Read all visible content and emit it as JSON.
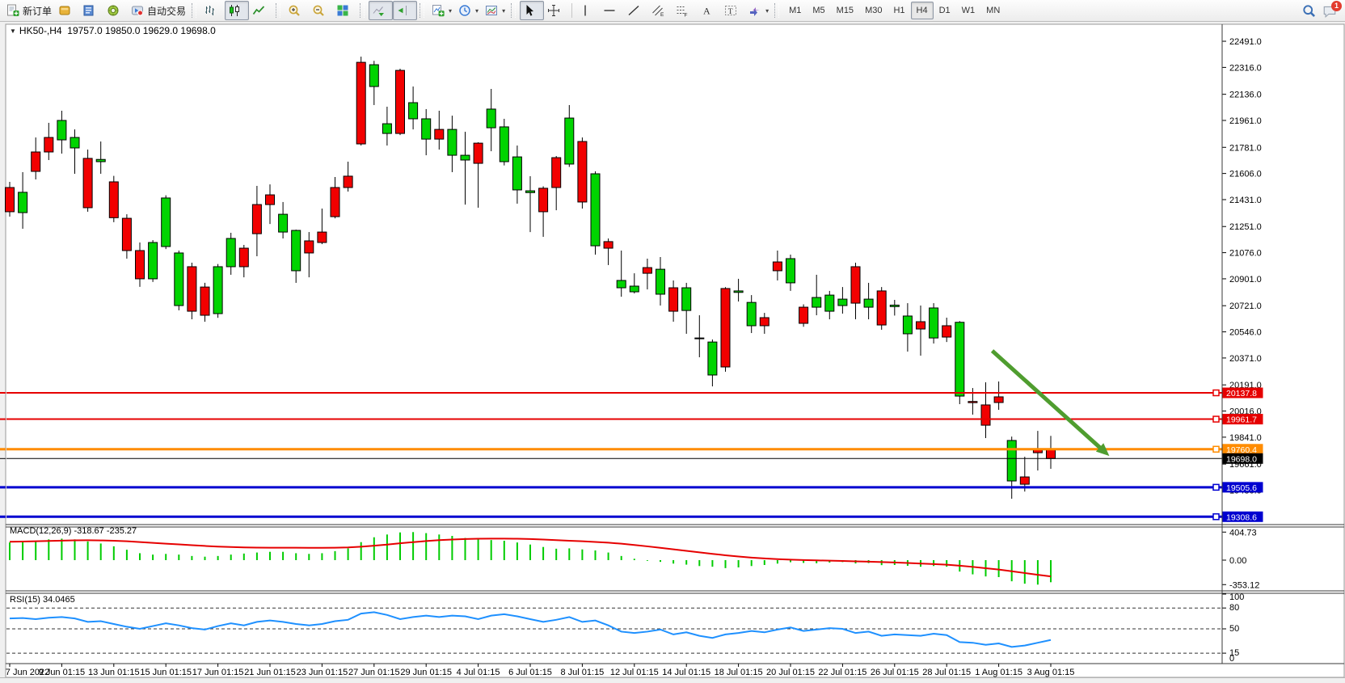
{
  "toolbar": {
    "notification_count": "1",
    "active_timeframe": "H4",
    "timeframes": [
      "M1",
      "M5",
      "M15",
      "M30",
      "H1",
      "H4",
      "D1",
      "W1",
      "MN"
    ],
    "groups": [
      {
        "name": "trade",
        "items": [
          {
            "name": "new-order-button",
            "icon": "new-order-icon",
            "label": "新订单"
          },
          {
            "name": "market-watch-button",
            "icon": "market-watch-icon"
          },
          {
            "name": "data-window-button",
            "icon": "data-window-icon"
          },
          {
            "name": "navigator-button",
            "icon": "navigator-icon"
          },
          {
            "name": "autotrading-button",
            "icon": "autotrading-icon",
            "label": "自动交易"
          }
        ]
      },
      {
        "name": "chart-type",
        "items": [
          {
            "name": "bar-chart-button",
            "icon": "chart-bar-icon"
          },
          {
            "name": "candlestick-chart-button",
            "icon": "chart-candle-icon",
            "active": true
          },
          {
            "name": "line-chart-button",
            "icon": "chart-line-icon"
          }
        ]
      },
      {
        "name": "zoom",
        "items": [
          {
            "name": "zoom-in-button",
            "icon": "zoom-in-icon"
          },
          {
            "name": "zoom-out-button",
            "icon": "zoom-out-icon"
          },
          {
            "name": "tile-windows-button",
            "icon": "tile-windows-icon"
          }
        ]
      },
      {
        "name": "scroll",
        "items": [
          {
            "name": "auto-scroll-button",
            "icon": "auto-scroll-icon",
            "active": true
          },
          {
            "name": "chart-shift-button",
            "icon": "chart-shift-icon",
            "active": true
          }
        ]
      },
      {
        "name": "insert",
        "items": [
          {
            "name": "add-indicator-button",
            "icon": "add-indicator-icon",
            "dropdown": true
          },
          {
            "name": "periods-button",
            "icon": "periods-icon",
            "dropdown": true
          },
          {
            "name": "templates-button",
            "icon": "template-icon",
            "dropdown": true
          }
        ]
      },
      {
        "name": "tools",
        "items": [
          {
            "name": "cursor-button",
            "icon": "cursor-icon",
            "active": true
          },
          {
            "name": "crosshair-button",
            "icon": "crosshair-icon"
          },
          {
            "name": "vertical-line-button",
            "icon": "vline-icon"
          },
          {
            "name": "horizontal-line-button",
            "icon": "hline-icon"
          },
          {
            "name": "trendline-button",
            "icon": "trendline-icon"
          },
          {
            "name": "channel-button",
            "icon": "channel-icon"
          },
          {
            "name": "fibonacci-button",
            "icon": "fibonacci-icon"
          },
          {
            "name": "text-button",
            "icon": "text-icon"
          },
          {
            "name": "label-button",
            "icon": "label-icon"
          },
          {
            "name": "shapes-button",
            "icon": "shapes-icon",
            "dropdown": true
          }
        ]
      }
    ]
  },
  "chart": {
    "title_symbol": "HK50-,H4",
    "title_ohlc": "19757.0 19850.0 19629.0 19698.0"
  },
  "chart_data": {
    "type": "candlestick",
    "symbol": "HK50-",
    "timeframe": "H4",
    "current_bar": {
      "open": 19757.0,
      "high": 19850.0,
      "low": 19629.0,
      "close": 19698.0
    },
    "colors": {
      "bull": "#00d400",
      "bear": "#f20000",
      "wick": "#000000",
      "rsi_line": "#1e90ff",
      "macd_hist": "#00cc00",
      "macd_signal": "#e60000",
      "arrow": "#4f9d2f"
    },
    "price_axis_ticks": [
      "22491.0",
      "22316.0",
      "22136.0",
      "21961.0",
      "21781.0",
      "21606.0",
      "21431.0",
      "21251.0",
      "21076.0",
      "20901.0",
      "20721.0",
      "20546.0",
      "20371.0",
      "20191.0",
      "20016.0",
      "19841.0",
      "19661.0",
      "19486.0",
      "19311.0"
    ],
    "time_axis_labels": [
      "7 Jun 2022",
      "9 Jun 01:15",
      "13 Jun 01:15",
      "15 Jun 01:15",
      "17 Jun 01:15",
      "21 Jun 01:15",
      "23 Jun 01:15",
      "27 Jun 01:15",
      "29 Jun 01:15",
      "4 Jul 01:15",
      "6 Jul 01:15",
      "8 Jul 01:15",
      "12 Jul 01:15",
      "14 Jul 01:15",
      "18 Jul 01:15",
      "20 Jul 01:15",
      "22 Jul 01:15",
      "26 Jul 01:15",
      "28 Jul 01:15",
      "1 Aug 01:15",
      "3 Aug 01:15"
    ],
    "hlines": [
      {
        "price": 20137.8,
        "label": "20137.8",
        "color": "#e60000",
        "width": 2
      },
      {
        "price": 19961.7,
        "label": "19961.7",
        "color": "#e60000",
        "width": 2
      },
      {
        "price": 19760.4,
        "label": "19760.4",
        "color": "#ff8c00",
        "width": 3
      },
      {
        "price": 19698.0,
        "label": "19698.0",
        "color": "#000000",
        "width": 1
      },
      {
        "price": 19505.6,
        "label": "19505.6",
        "color": "#0000d0",
        "width": 3
      },
      {
        "price": 19308.6,
        "label": "19308.6",
        "color": "#0000d0",
        "width": 3
      }
    ],
    "arrow": {
      "from": {
        "index": 75.5,
        "price": 20419
      },
      "to": {
        "index": 84.5,
        "price": 19715
      }
    },
    "candles": [
      [
        21512,
        21550,
        21317,
        21350
      ],
      [
        21344,
        21615,
        21236,
        21480
      ],
      [
        21750,
        21847,
        21566,
        21620
      ],
      [
        21847,
        21945,
        21696,
        21750
      ],
      [
        21831,
        22026,
        21739,
        21961
      ],
      [
        21777,
        21901,
        21604,
        21847
      ],
      [
        21707,
        21766,
        21350,
        21377
      ],
      [
        21685,
        21820,
        21604,
        21700
      ],
      [
        21550,
        21590,
        21280,
        21310
      ],
      [
        21306,
        21333,
        21036,
        21090
      ],
      [
        21090,
        21144,
        20847,
        20901
      ],
      [
        20901,
        21160,
        20880,
        21144
      ],
      [
        21117,
        21460,
        21100,
        21442
      ],
      [
        20722,
        21090,
        20690,
        21074
      ],
      [
        20982,
        21009,
        20630,
        20684
      ],
      [
        20846,
        20874,
        20614,
        20657
      ],
      [
        20668,
        21000,
        20640,
        20982
      ],
      [
        20982,
        21209,
        20928,
        21171
      ],
      [
        21106,
        21128,
        20911,
        20982
      ],
      [
        21398,
        21523,
        21052,
        21203
      ],
      [
        21463,
        21533,
        21268,
        21398
      ],
      [
        21214,
        21415,
        21171,
        21333
      ],
      [
        20955,
        21230,
        20874,
        21225
      ],
      [
        21155,
        21214,
        20911,
        21074
      ],
      [
        21214,
        21371,
        21133,
        21144
      ],
      [
        21512,
        21582,
        21306,
        21317
      ],
      [
        21588,
        21685,
        21485,
        21512
      ],
      [
        22350,
        22388,
        21793,
        21804
      ],
      [
        22188,
        22360,
        22064,
        22334
      ],
      [
        21874,
        22053,
        21793,
        21939
      ],
      [
        22296,
        22307,
        21863,
        21874
      ],
      [
        21972,
        22188,
        21901,
        22080
      ],
      [
        21836,
        22037,
        21728,
        21972
      ],
      [
        21901,
        22026,
        21766,
        21836
      ],
      [
        21728,
        21993,
        21615,
        21901
      ],
      [
        21696,
        21885,
        21398,
        21728
      ],
      [
        21809,
        21815,
        21377,
        21674
      ],
      [
        21912,
        22172,
        21755,
        22037
      ],
      [
        21685,
        21972,
        21660,
        21918
      ],
      [
        21496,
        21793,
        21404,
        21717
      ],
      [
        21478,
        21588,
        21214,
        21490
      ],
      [
        21507,
        21520,
        21182,
        21350
      ],
      [
        21712,
        21723,
        21360,
        21512
      ],
      [
        21669,
        22064,
        21650,
        21977
      ],
      [
        21820,
        21847,
        21371,
        21415
      ],
      [
        21122,
        21620,
        21063,
        21604
      ],
      [
        21150,
        21171,
        20993,
        21106
      ],
      [
        20841,
        21090,
        20781,
        20890
      ],
      [
        20814,
        20938,
        20803,
        20852
      ],
      [
        20976,
        21036,
        20830,
        20938
      ],
      [
        20798,
        21047,
        20722,
        20965
      ],
      [
        20841,
        20890,
        20614,
        20684
      ],
      [
        20689,
        20874,
        20533,
        20841
      ],
      [
        20500,
        20657,
        20376,
        20505
      ],
      [
        20257,
        20495,
        20181,
        20478
      ],
      [
        20836,
        20845,
        20279,
        20311
      ],
      [
        20810,
        20901,
        20749,
        20820
      ],
      [
        20587,
        20792,
        20538,
        20743
      ],
      [
        20641,
        20673,
        20533,
        20587
      ],
      [
        21014,
        21090,
        20890,
        20955
      ],
      [
        20874,
        21063,
        20820,
        21036
      ],
      [
        20711,
        20730,
        20580,
        20603
      ],
      [
        20711,
        20928,
        20657,
        20776
      ],
      [
        20684,
        20820,
        20630,
        20792
      ],
      [
        20722,
        20846,
        20668,
        20765
      ],
      [
        20982,
        21009,
        20630,
        20738
      ],
      [
        20711,
        20874,
        20630,
        20765
      ],
      [
        20820,
        20846,
        20560,
        20592
      ],
      [
        20715,
        20760,
        20655,
        20725
      ],
      [
        20533,
        20738,
        20414,
        20652
      ],
      [
        20614,
        20722,
        20387,
        20565
      ],
      [
        20505,
        20738,
        20468,
        20706
      ],
      [
        20587,
        20641,
        20478,
        20511
      ],
      [
        20116,
        20618,
        20062,
        20610
      ],
      [
        20080,
        20170,
        19992,
        20072
      ],
      [
        20057,
        20208,
        19835,
        19921
      ],
      [
        20111,
        20214,
        20024,
        20073
      ],
      [
        19548,
        19845,
        19429,
        19819
      ],
      [
        19575,
        19710,
        19477,
        19526
      ],
      [
        19759,
        19883,
        19618,
        19737
      ],
      [
        19757,
        19850,
        19629,
        19698
      ]
    ],
    "macd": {
      "label": "MACD(12,26,9)",
      "values_text": "-318.67 -235.27",
      "axis": [
        "404.73",
        "0.00",
        "-353.12"
      ],
      "hist": [
        255,
        265,
        280,
        300,
        310,
        300,
        270,
        240,
        200,
        150,
        100,
        80,
        90,
        80,
        60,
        50,
        60,
        80,
        95,
        110,
        120,
        120,
        100,
        90,
        100,
        130,
        170,
        260,
        330,
        370,
        400,
        405,
        390,
        370,
        350,
        320,
        300,
        290,
        280,
        255,
        225,
        190,
        165,
        170,
        155,
        140,
        110,
        60,
        20,
        -10,
        -25,
        -50,
        -65,
        -85,
        -95,
        -115,
        -105,
        -85,
        -70,
        -50,
        -30,
        -40,
        -45,
        -35,
        -28,
        -48,
        -42,
        -72,
        -70,
        -82,
        -95,
        -85,
        -95,
        -165,
        -205,
        -235,
        -245,
        -305,
        -340,
        -353.12,
        -318.67
      ],
      "signal": [
        265,
        268,
        272,
        277,
        282,
        286,
        287,
        285,
        280,
        272,
        261,
        249,
        238,
        227,
        216,
        205,
        196,
        189,
        184,
        181,
        180,
        180,
        179,
        178,
        178,
        180,
        184,
        194,
        208,
        225,
        243,
        260,
        275,
        288,
        298,
        305,
        309,
        311,
        311,
        309,
        304,
        297,
        288,
        280,
        272,
        263,
        252,
        237,
        219,
        199,
        178,
        156,
        134,
        112,
        91,
        70,
        52,
        37,
        25,
        15,
        8,
        2,
        -3,
        -8,
        -12,
        -17,
        -22,
        -28,
        -34,
        -41,
        -49,
        -57,
        -66,
        -80,
        -97,
        -116,
        -136,
        -160,
        -186,
        -211,
        -235.27
      ]
    },
    "rsi": {
      "label": "RSI(15)",
      "value_text": "34.0465",
      "levels": [
        80,
        50,
        15
      ],
      "axis": [
        "100",
        "80",
        "50",
        "15",
        "0"
      ],
      "values": [
        65,
        65.5,
        64,
        66,
        67,
        65,
        60,
        61,
        57,
        53,
        50,
        54,
        58,
        55,
        51,
        49,
        54,
        58,
        55,
        60,
        62,
        60,
        57,
        55,
        57,
        61,
        63,
        72,
        74,
        70,
        64,
        67,
        69,
        67,
        69,
        68,
        64,
        69,
        71,
        68,
        64,
        60,
        63,
        67,
        60,
        62,
        55,
        46,
        44,
        46,
        49,
        42,
        45,
        40,
        37,
        42,
        44,
        47,
        45,
        49,
        52,
        47,
        49,
        51,
        50,
        44,
        46,
        40,
        42,
        41,
        40,
        43,
        41,
        31,
        30,
        27,
        29,
        24,
        26,
        30,
        34.05
      ]
    }
  }
}
